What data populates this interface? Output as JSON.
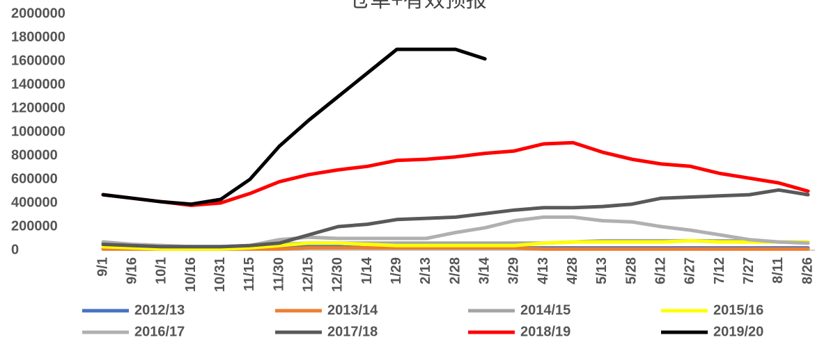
{
  "chart_data": {
    "type": "line",
    "title": "仓单+有效预报",
    "categories": [
      "9/1",
      "9/16",
      "10/1",
      "10/16",
      "10/31",
      "11/15",
      "11/30",
      "12/15",
      "12/30",
      "1/14",
      "1/29",
      "2/13",
      "2/28",
      "3/14",
      "3/29",
      "4/13",
      "4/28",
      "5/13",
      "5/28",
      "6/12",
      "6/27",
      "7/12",
      "7/27",
      "8/11",
      "8/26"
    ],
    "ylim": [
      0,
      2000000
    ],
    "yticks": [
      0,
      200000,
      400000,
      600000,
      800000,
      1000000,
      1200000,
      1400000,
      1600000,
      1800000,
      2000000
    ],
    "grid": false,
    "series": [
      {
        "name": "2012/13",
        "color": "#4472c4",
        "values": [
          50000,
          40000,
          30000,
          30000,
          30000,
          30000,
          30000,
          30000,
          30000,
          20000,
          20000,
          20000,
          20000,
          20000,
          20000,
          20000,
          20000,
          20000,
          20000,
          20000,
          20000,
          20000,
          20000,
          20000,
          20000
        ]
      },
      {
        "name": "2013/14",
        "color": "#ed7d31",
        "values": [
          10000,
          10000,
          10000,
          10000,
          10000,
          10000,
          10000,
          20000,
          20000,
          20000,
          20000,
          20000,
          20000,
          20000,
          20000,
          10000,
          10000,
          10000,
          10000,
          10000,
          10000,
          10000,
          10000,
          10000,
          10000
        ]
      },
      {
        "name": "2014/15",
        "color": "#a5a5a5",
        "values": [
          70000,
          50000,
          40000,
          30000,
          30000,
          40000,
          50000,
          60000,
          60000,
          60000,
          60000,
          60000,
          60000,
          60000,
          60000,
          60000,
          70000,
          80000,
          80000,
          80000,
          80000,
          80000,
          80000,
          70000,
          70000
        ]
      },
      {
        "name": "2015/16",
        "color": "#ffff00",
        "values": [
          30000,
          20000,
          10000,
          10000,
          10000,
          20000,
          40000,
          60000,
          60000,
          50000,
          40000,
          40000,
          40000,
          40000,
          40000,
          60000,
          70000,
          70000,
          70000,
          70000,
          80000,
          70000,
          70000,
          70000,
          70000
        ]
      },
      {
        "name": "2016/17",
        "color": "#b0b0b0",
        "values": [
          60000,
          50000,
          40000,
          30000,
          30000,
          40000,
          90000,
          110000,
          100000,
          100000,
          100000,
          100000,
          150000,
          190000,
          250000,
          280000,
          280000,
          250000,
          240000,
          200000,
          170000,
          130000,
          90000,
          70000,
          60000
        ]
      },
      {
        "name": "2017/18",
        "color": "#595959",
        "values": [
          50000,
          40000,
          30000,
          30000,
          30000,
          40000,
          60000,
          130000,
          200000,
          220000,
          260000,
          270000,
          280000,
          310000,
          340000,
          360000,
          360000,
          370000,
          390000,
          440000,
          450000,
          460000,
          470000,
          510000,
          470000
        ]
      },
      {
        "name": "2018/19",
        "color": "#ff0000",
        "values": [
          470000,
          440000,
          410000,
          380000,
          400000,
          480000,
          580000,
          640000,
          680000,
          710000,
          760000,
          770000,
          790000,
          820000,
          840000,
          900000,
          910000,
          830000,
          770000,
          730000,
          710000,
          650000,
          610000,
          570000,
          500000
        ]
      },
      {
        "name": "2019/20",
        "color": "#000000",
        "values": [
          470000,
          440000,
          410000,
          390000,
          430000,
          600000,
          880000,
          1100000,
          1300000,
          1500000,
          1700000,
          1700000,
          1700000,
          1620000,
          null,
          null,
          null,
          null,
          null,
          null,
          null,
          null,
          null,
          null,
          null
        ]
      }
    ]
  }
}
